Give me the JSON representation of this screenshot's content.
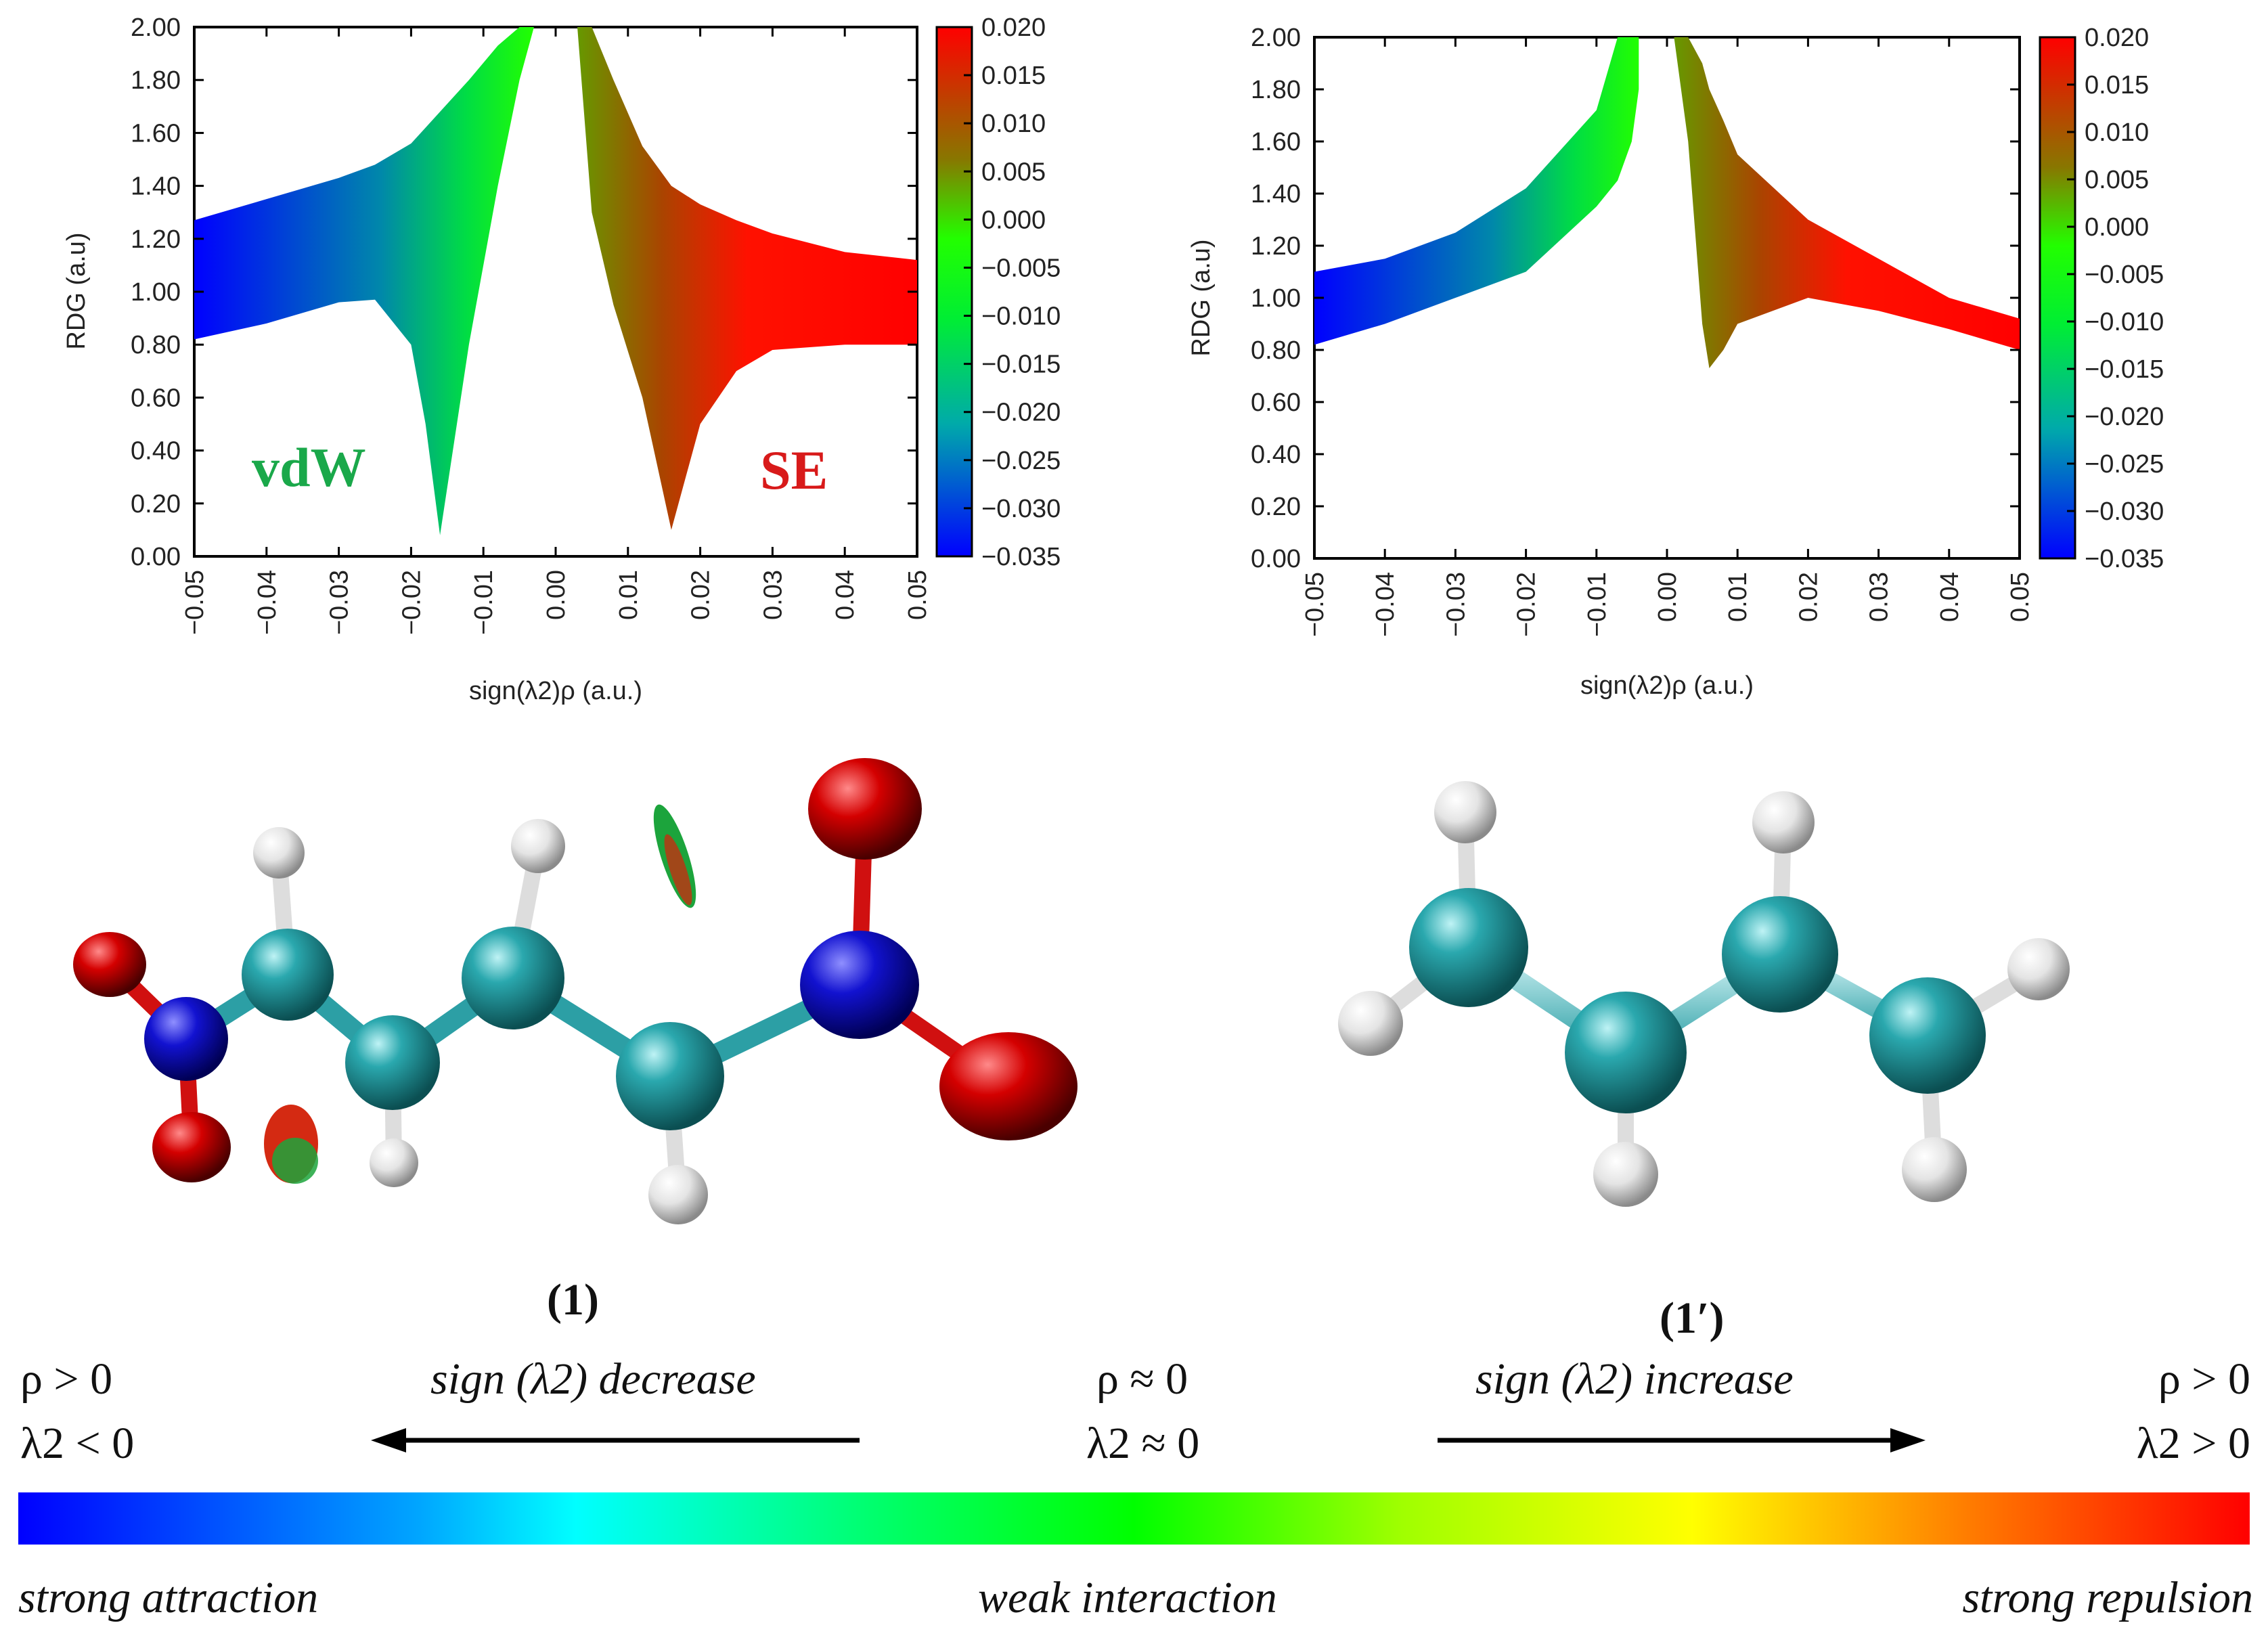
{
  "chart_data": [
    {
      "type": "scatter",
      "panel": "left",
      "xlabel": "sign(λ2)ρ (a.u.)",
      "ylabel": "RDG (a.u)",
      "xlim": [
        -0.05,
        0.05
      ],
      "ylim": [
        0.0,
        2.0
      ],
      "xticks": [
        "−0.05",
        "−0.04",
        "−0.03",
        "−0.02",
        "−0.01",
        "0.00",
        "0.01",
        "0.02",
        "0.03",
        "0.04",
        "0.05"
      ],
      "yticks": [
        "0.00",
        "0.20",
        "0.40",
        "0.60",
        "0.80",
        "1.00",
        "1.20",
        "1.40",
        "1.60",
        "1.80",
        "2.00"
      ],
      "colorbar": {
        "range": [
          -0.035,
          0.02
        ],
        "ticks": [
          "0.020",
          "0.015",
          "0.010",
          "0.005",
          "0.000",
          "−0.005",
          "−0.010",
          "−0.015",
          "−0.020",
          "−0.025",
          "−0.030",
          "−0.035"
        ]
      },
      "annotations": [
        {
          "text": "vdW",
          "color": "#1aa84a"
        },
        {
          "text": "SE",
          "color": "#d81a1a"
        }
      ],
      "series": [
        {
          "name": "negative branch",
          "x": [
            -0.05,
            -0.04,
            -0.03,
            -0.025,
            -0.02,
            -0.018,
            -0.016,
            -0.012,
            -0.008,
            -0.005,
            -0.003
          ],
          "upper": [
            1.27,
            1.35,
            1.43,
            1.48,
            1.56,
            1.62,
            1.68,
            1.8,
            1.93,
            2.0,
            2.0
          ],
          "lower": [
            0.82,
            0.88,
            0.96,
            0.97,
            0.8,
            0.5,
            0.08,
            0.8,
            1.4,
            1.8,
            2.0
          ]
        },
        {
          "name": "positive branch",
          "x": [
            0.003,
            0.005,
            0.008,
            0.012,
            0.016,
            0.02,
            0.025,
            0.03,
            0.04,
            0.05
          ],
          "upper": [
            2.0,
            2.0,
            1.8,
            1.55,
            1.4,
            1.33,
            1.27,
            1.22,
            1.15,
            1.12
          ],
          "lower": [
            2.0,
            1.3,
            0.95,
            0.6,
            0.1,
            0.5,
            0.7,
            0.78,
            0.8,
            0.8
          ]
        }
      ]
    },
    {
      "type": "scatter",
      "panel": "right",
      "xlabel": "sign(λ2)ρ (a.u.)",
      "ylabel": "RDG (a.u)",
      "xlim": [
        -0.05,
        0.05
      ],
      "ylim": [
        0.0,
        2.0
      ],
      "xticks": [
        "−0.05",
        "−0.04",
        "−0.03",
        "−0.02",
        "−0.01",
        "0.00",
        "0.01",
        "0.02",
        "0.03",
        "0.04",
        "0.05"
      ],
      "yticks": [
        "0.00",
        "0.20",
        "0.40",
        "0.60",
        "0.80",
        "1.00",
        "1.20",
        "1.40",
        "1.60",
        "1.80",
        "2.00"
      ],
      "colorbar": {
        "range": [
          -0.035,
          0.02
        ],
        "ticks": [
          "0.020",
          "0.015",
          "0.010",
          "0.005",
          "0.000",
          "−0.005",
          "−0.010",
          "−0.015",
          "−0.020",
          "−0.025",
          "−0.030",
          "−0.035"
        ]
      },
      "series": [
        {
          "name": "negative branch",
          "x": [
            -0.05,
            -0.04,
            -0.03,
            -0.02,
            -0.01,
            -0.007,
            -0.005,
            -0.004
          ],
          "upper": [
            1.1,
            1.15,
            1.25,
            1.42,
            1.72,
            2.0,
            2.0,
            2.0
          ],
          "lower": [
            0.82,
            0.9,
            1.0,
            1.1,
            1.35,
            1.45,
            1.6,
            1.8
          ]
        },
        {
          "name": "positive branch",
          "x": [
            0.001,
            0.003,
            0.005,
            0.006,
            0.008,
            0.01,
            0.02,
            0.03,
            0.04,
            0.05
          ],
          "upper": [
            2.0,
            2.0,
            1.9,
            1.8,
            1.68,
            1.55,
            1.3,
            1.15,
            1.0,
            0.92
          ],
          "lower": [
            2.0,
            1.6,
            0.9,
            0.73,
            0.8,
            0.9,
            1.0,
            0.95,
            0.88,
            0.8
          ]
        }
      ]
    }
  ],
  "molecule_labels": {
    "left": "(1)",
    "right": "(1′)"
  },
  "legend": {
    "left_cond": [
      "ρ > 0",
      "λ2 < 0"
    ],
    "left_arrow_text": "sign (λ2) decrease",
    "mid_cond": [
      "ρ ≈ 0",
      "λ2 ≈ 0"
    ],
    "right_arrow_text": "sign (λ2) increase",
    "right_cond": [
      "ρ > 0",
      "λ2 > 0"
    ],
    "scale_labels": [
      "strong attraction",
      "weak interaction",
      "strong repulsion"
    ]
  },
  "colors": {
    "carbon": "#1f9aa0",
    "nitrogen": "#1a1acc",
    "oxygen": "#d01010",
    "hydrogen": "#e8e8e8"
  }
}
